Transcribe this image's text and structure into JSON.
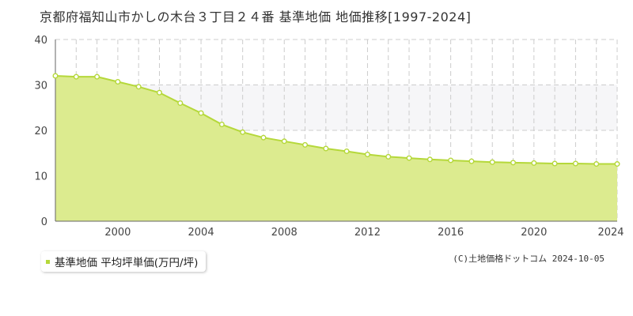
{
  "title": "京都府福知山市かしの木台３丁目２４番 基準地価 地価推移[1997-2024]",
  "legend": {
    "label": "基準地価 平均坪単価(万円/坪)"
  },
  "copyright": "(C)土地価格ドットコム 2024-10-05",
  "colors": {
    "fill": "#dceb8f",
    "line": "#b5d83a",
    "grid": "#cccccc",
    "band": "#f6f6f8"
  },
  "chart_data": {
    "type": "area",
    "x": [
      1997,
      1998,
      1999,
      2000,
      2001,
      2002,
      2003,
      2004,
      2005,
      2006,
      2007,
      2008,
      2009,
      2010,
      2011,
      2012,
      2013,
      2014,
      2015,
      2016,
      2017,
      2018,
      2019,
      2020,
      2021,
      2022,
      2023,
      2024
    ],
    "series": [
      {
        "name": "基準地価 平均坪単価(万円/坪)",
        "values": [
          32.0,
          31.8,
          31.8,
          30.7,
          29.6,
          28.3,
          26.0,
          23.8,
          21.3,
          19.6,
          18.4,
          17.6,
          16.8,
          16.0,
          15.4,
          14.7,
          14.2,
          13.9,
          13.6,
          13.4,
          13.2,
          13.0,
          12.9,
          12.8,
          12.7,
          12.7,
          12.6,
          12.6
        ]
      }
    ],
    "xlim": [
      1997,
      2024
    ],
    "ylim": [
      0,
      40
    ],
    "x_ticks": [
      "2000",
      "2004",
      "2008",
      "2012",
      "2016",
      "2020",
      "2024"
    ],
    "y_ticks": [
      "0",
      "10",
      "20",
      "30",
      "40"
    ],
    "grid": true,
    "legend_position": "bottom-left"
  }
}
